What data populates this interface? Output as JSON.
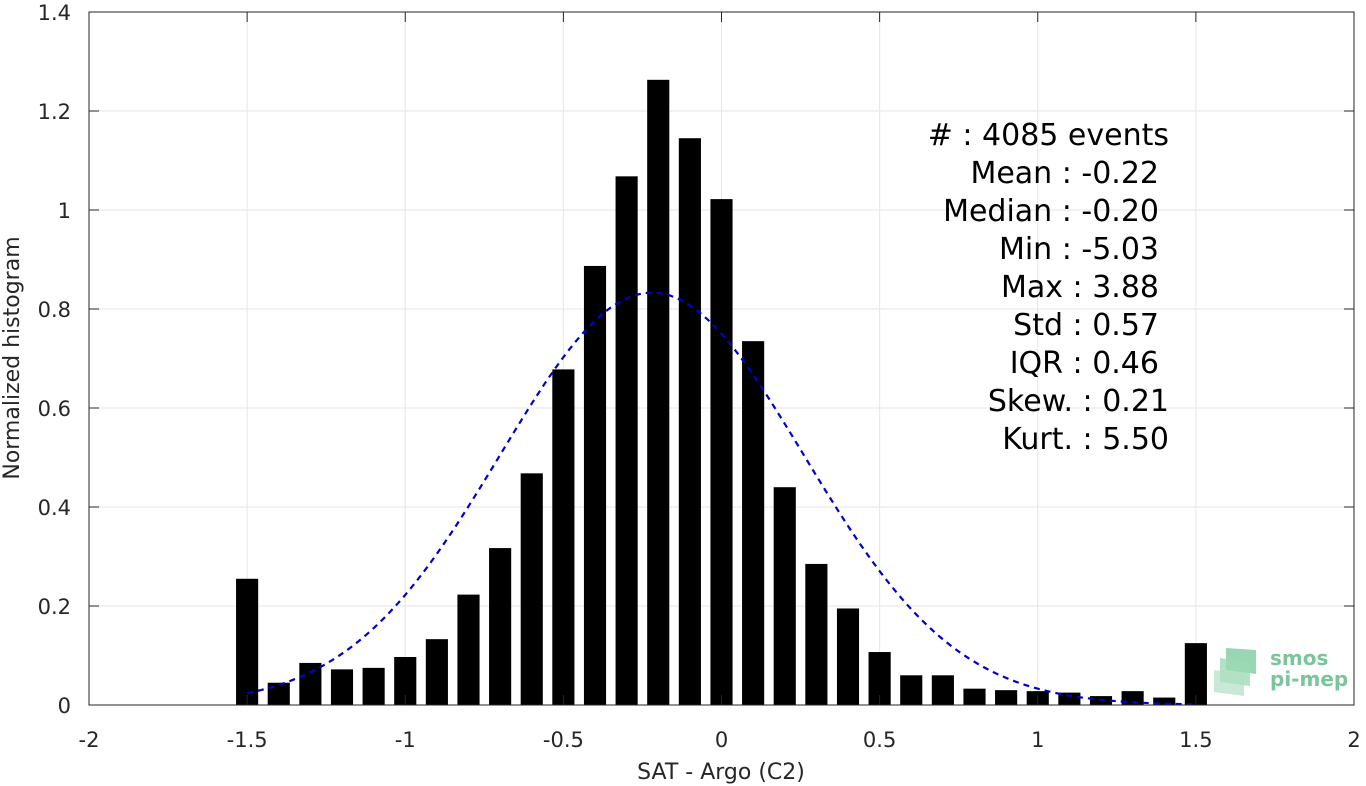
{
  "chart_data": {
    "type": "bar",
    "xlabel": "SAT - Argo (C2)",
    "ylabel": "Normalized histogram",
    "xlim": [
      -2,
      2
    ],
    "ylim": [
      0,
      1.4
    ],
    "xticks": [
      -2,
      -1.5,
      -1,
      -0.5,
      0,
      0.5,
      1,
      1.5,
      2
    ],
    "xtick_labels": [
      "-2",
      "-1.5",
      "-1",
      "-0.5",
      "0",
      "0.5",
      "1",
      "1.5",
      "2"
    ],
    "yticks": [
      0,
      0.2,
      0.4,
      0.6,
      0.8,
      1,
      1.2,
      1.4
    ],
    "ytick_labels": [
      "0",
      "0.2",
      "0.4",
      "0.6",
      "0.8",
      "1",
      "1.2",
      "1.4"
    ],
    "grid": true,
    "bar_width": 0.07,
    "bar_color": "#000000",
    "bins": [
      -1.5,
      -1.4,
      -1.3,
      -1.2,
      -1.1,
      -1.0,
      -0.9,
      -0.8,
      -0.7,
      -0.6,
      -0.5,
      -0.4,
      -0.3,
      -0.2,
      -0.1,
      0.0,
      0.1,
      0.2,
      0.3,
      0.4,
      0.5,
      0.6,
      0.7,
      0.8,
      0.9,
      1.0,
      1.1,
      1.2,
      1.3,
      1.4,
      1.5
    ],
    "values": [
      0.255,
      0.045,
      0.085,
      0.072,
      0.075,
      0.097,
      0.133,
      0.223,
      0.317,
      0.468,
      0.678,
      0.887,
      1.068,
      1.263,
      1.145,
      1.022,
      0.735,
      0.44,
      0.285,
      0.195,
      0.107,
      0.06,
      0.06,
      0.033,
      0.03,
      0.028,
      0.025,
      0.018,
      0.028,
      0.015,
      0.125
    ],
    "fit": {
      "type": "gaussian",
      "mean": -0.22,
      "std": 0.48,
      "peak": 0.833,
      "x_range": [
        -1.5,
        1.5
      ],
      "color": "#0000cc",
      "style": "dashed"
    }
  },
  "stats": [
    {
      "label": "#  : 4085 events"
    },
    {
      "label": "Mean : -0.22"
    },
    {
      "label": "Median : -0.20"
    },
    {
      "label": "Min : -5.03"
    },
    {
      "label": "Max : 3.88"
    },
    {
      "label": "Std : 0.57"
    },
    {
      "label": "IQR : 0.46"
    },
    {
      "label": "Skew. : 0.21"
    },
    {
      "label": "Kurt. : 5.50"
    }
  ],
  "logo": {
    "line1": "smos",
    "line2": "pi-mep",
    "color": "#7cc49a"
  }
}
